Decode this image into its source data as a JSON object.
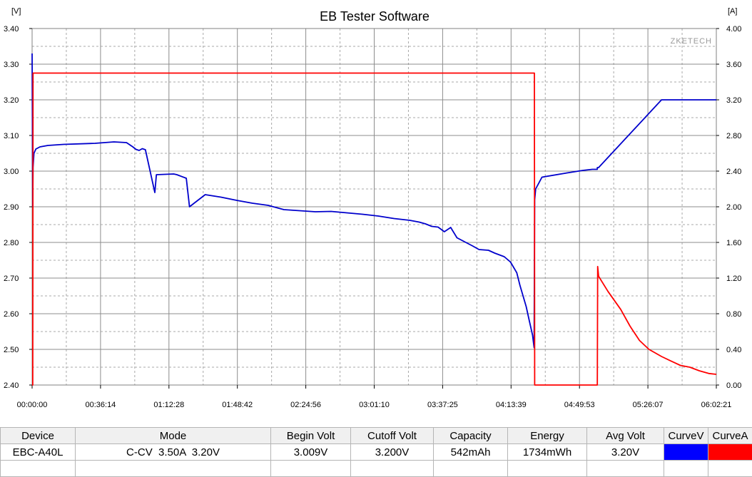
{
  "chart_data": {
    "type": "line",
    "title": "EB Tester Software",
    "watermark": "ZKETECH",
    "left_unit": "[V]",
    "right_unit": "[A]",
    "y_left": {
      "range": [
        2.4,
        3.4
      ],
      "ticks": [
        "2.40",
        "2.50",
        "2.60",
        "2.70",
        "2.80",
        "2.90",
        "3.00",
        "3.10",
        "3.20",
        "3.30",
        "3.40"
      ]
    },
    "y_right": {
      "range": [
        0,
        4
      ],
      "ticks": [
        "0.00",
        "0.40",
        "0.80",
        "1.20",
        "1.60",
        "2.00",
        "2.40",
        "2.80",
        "3.20",
        "3.60",
        "4.00"
      ]
    },
    "x_axis": {
      "range": [
        0,
        21741
      ],
      "unit": "seconds",
      "ticks": [
        "00:00:00",
        "00:36:14",
        "01:12:28",
        "01:48:42",
        "02:24:56",
        "03:01:10",
        "03:37:25",
        "04:13:39",
        "04:49:53",
        "05:26:07",
        "06:02:21"
      ]
    },
    "grid": true,
    "series": [
      {
        "name": "CurveV",
        "color": "#0000cc",
        "axis": "left",
        "x": [
          0,
          20,
          30,
          60,
          120,
          250,
          500,
          1000,
          2000,
          2600,
          3000,
          3200,
          3300,
          3400,
          3500,
          3600,
          3900,
          3950,
          4500,
          4600,
          4900,
          5000,
          5500,
          6000,
          6500,
          7000,
          7500,
          8000,
          8500,
          9000,
          9500,
          10000,
          10500,
          11000,
          11500,
          12000,
          12300,
          12500,
          12700,
          12900,
          13100,
          13300,
          13500,
          14000,
          14200,
          14500,
          14700,
          15000,
          15200,
          15400,
          15500,
          15700,
          15800,
          15900,
          15950,
          15970,
          16000,
          16200,
          17000,
          17500,
          17600,
          17800,
          18000,
          20000,
          21741
        ],
        "y": [
          3.33,
          2.9,
          3.01,
          3.05,
          3.062,
          3.068,
          3.072,
          3.075,
          3.078,
          3.082,
          3.08,
          3.068,
          3.061,
          3.058,
          3.063,
          3.06,
          2.94,
          2.99,
          2.992,
          2.99,
          2.98,
          2.9,
          2.934,
          2.927,
          2.918,
          2.91,
          2.904,
          2.892,
          2.889,
          2.886,
          2.887,
          2.883,
          2.879,
          2.874,
          2.867,
          2.862,
          2.857,
          2.852,
          2.845,
          2.843,
          2.83,
          2.842,
          2.813,
          2.79,
          2.78,
          2.778,
          2.77,
          2.76,
          2.745,
          2.715,
          2.68,
          2.62,
          2.58,
          2.54,
          2.505,
          2.92,
          2.95,
          2.983,
          2.995,
          3.002,
          3.003,
          3.005,
          3.01,
          3.2,
          3.2
        ],
        "steps": [
          17959
        ]
      },
      {
        "name": "CurveA",
        "color": "#ff0000",
        "axis": "right",
        "x": [
          0,
          20,
          30,
          15000,
          15960,
          15970,
          16000,
          16500,
          17000,
          17500,
          17960,
          17970,
          18000,
          18300,
          18700,
          19000,
          19300,
          19600,
          20000,
          20300,
          20600,
          20900,
          21200,
          21500,
          21741
        ],
        "y": [
          0.0,
          0.0,
          3.5,
          3.5,
          3.5,
          0.0,
          0.0,
          0.0,
          0.0,
          0.0,
          0.0,
          1.33,
          1.22,
          1.05,
          0.85,
          0.66,
          0.5,
          0.4,
          0.32,
          0.27,
          0.22,
          0.2,
          0.16,
          0.13,
          0.12
        ]
      }
    ]
  },
  "table": {
    "headers": [
      "Device",
      "Mode",
      "Begin Volt",
      "Cutoff Volt",
      "Capacity",
      "Energy",
      "Avg Volt",
      "CurveV",
      "CurveA"
    ],
    "row": [
      "EBC-A40L",
      "C-CV  3.50A  3.20V",
      "3.009V",
      "3.200V",
      "542mAh",
      "1734mWh",
      "3.20V"
    ],
    "swatch_colors": [
      "#0000ff",
      "#ff0000"
    ]
  }
}
